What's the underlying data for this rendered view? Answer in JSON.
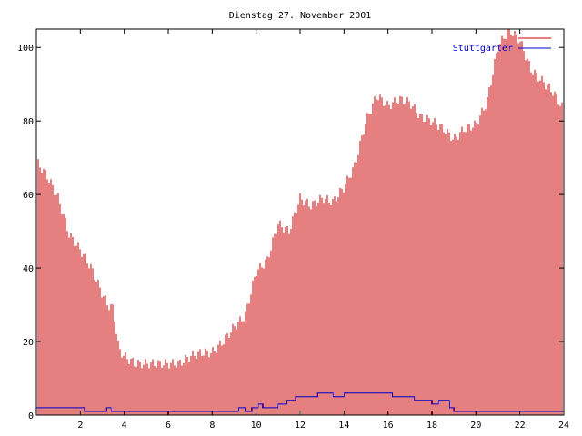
{
  "chart_data": {
    "type": "bar",
    "title": "Dienstag 27. November 2001",
    "xlabel": "",
    "ylabel": "",
    "xlim": [
      0,
      24
    ],
    "ylim": [
      0,
      105
    ],
    "x_ticks": [
      2,
      4,
      6,
      8,
      10,
      12,
      14,
      16,
      18,
      20,
      22,
      24
    ],
    "y_ticks": [
      0,
      20,
      40,
      60,
      80,
      100
    ],
    "legend_position": "top-right",
    "grid": false,
    "series": [
      {
        "name": "",
        "style": "impulses",
        "color": "#cc0000",
        "x": [
          0,
          0.5,
          1,
          1.5,
          2,
          2.5,
          3,
          3.25,
          3.5,
          3.75,
          4,
          4.5,
          5,
          5.5,
          6,
          6.5,
          7,
          7.5,
          8,
          8.5,
          9,
          9.5,
          10,
          10.5,
          11,
          11.5,
          12,
          12.5,
          13,
          13.5,
          14,
          14.5,
          15,
          15.5,
          16,
          16.5,
          17,
          17.5,
          18,
          18.5,
          19,
          19.5,
          20,
          20.5,
          21,
          21.5,
          22,
          22.5,
          23,
          23.5,
          24
        ],
        "values": [
          69,
          65,
          59,
          49,
          45,
          40,
          33,
          30,
          29,
          18,
          16,
          14,
          14,
          14,
          14,
          14,
          16,
          17,
          17,
          20,
          24,
          27,
          39,
          42,
          52,
          50,
          59,
          57,
          59,
          58,
          62,
          68,
          80,
          87,
          84,
          86,
          85,
          81,
          80,
          78,
          75,
          78,
          79,
          85,
          100,
          105,
          102,
          94,
          91,
          88,
          83
        ]
      },
      {
        "name": "Stuttgarter",
        "style": "line",
        "color": "#0000cc",
        "x": [
          0,
          2,
          2.2,
          3,
          3.2,
          3.4,
          4,
          9,
          9.2,
          9.5,
          9.8,
          10.1,
          10.3,
          10.6,
          11,
          11.4,
          11.8,
          12.5,
          12.8,
          13.2,
          13.5,
          14,
          16,
          16.2,
          17,
          17.2,
          18,
          18.3,
          18.8,
          19,
          24
        ],
        "values": [
          2,
          2,
          1,
          1,
          2,
          1,
          1,
          1,
          2,
          1,
          2,
          3,
          2,
          2,
          3,
          4,
          5,
          5,
          6,
          6,
          5,
          6,
          6,
          5,
          5,
          4,
          3,
          4,
          2,
          1,
          1
        ]
      }
    ]
  }
}
